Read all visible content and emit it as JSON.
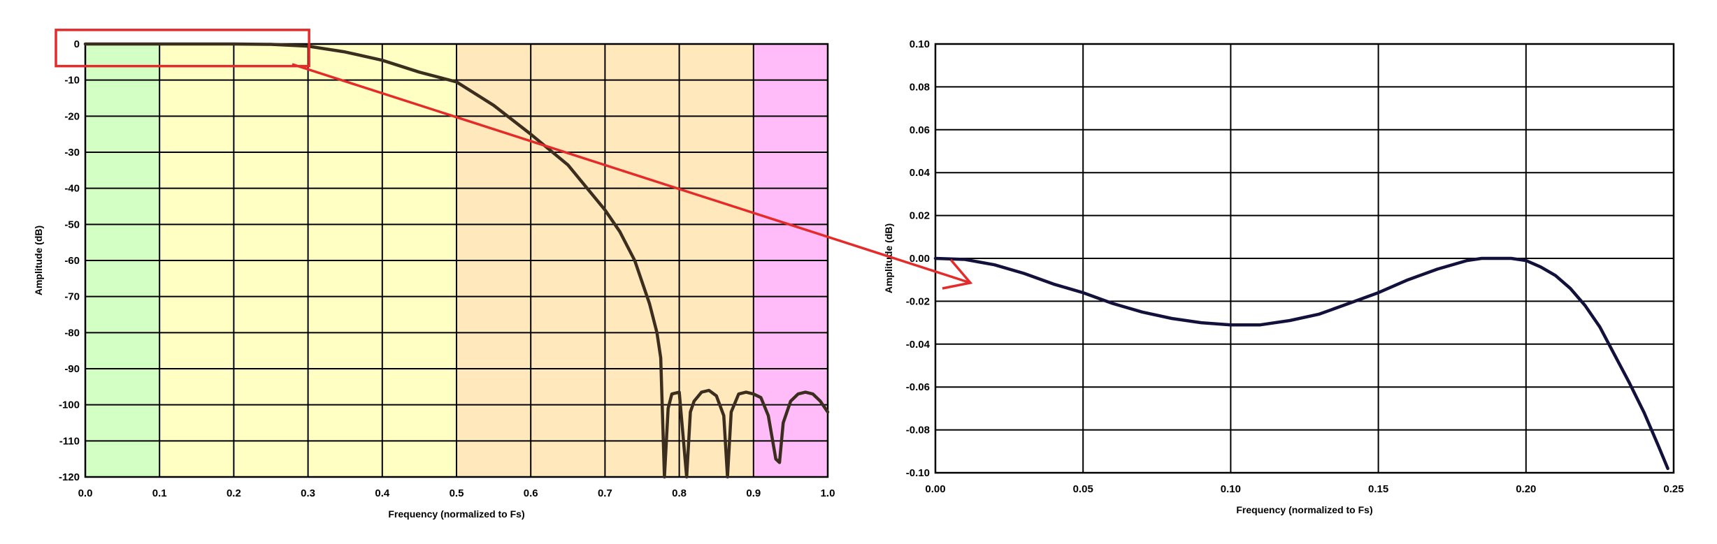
{
  "chart_data": [
    {
      "type": "line",
      "xlabel": "Frequency (normalized to Fs)",
      "ylabel": "Amplitude (dB)",
      "xlim": [
        0,
        1
      ],
      "ylim": [
        -120,
        0
      ],
      "x_ticks": [
        "0.0",
        "0.1",
        "0.2",
        "0.3",
        "0.4",
        "0.5",
        "0.6",
        "0.7",
        "0.8",
        "0.9",
        "1.0"
      ],
      "y_ticks": [
        "0",
        "-10",
        "-20",
        "-30",
        "-40",
        "-50",
        "-60",
        "-70",
        "-80",
        "-90",
        "-100",
        "-110",
        "-120"
      ],
      "grid": true,
      "bands": [
        {
          "x": [
            0.0,
            0.1
          ],
          "color": "#d4ffc4"
        },
        {
          "x": [
            0.1,
            0.5
          ],
          "color": "#ffffc4"
        },
        {
          "x": [
            0.5,
            0.9
          ],
          "color": "#ffe8bc"
        },
        {
          "x": [
            0.9,
            1.0
          ],
          "color": "#ffbcf8"
        }
      ],
      "series": [
        {
          "color": "#3b2e1e",
          "x": [
            0.0,
            0.05,
            0.1,
            0.15,
            0.2,
            0.25,
            0.3,
            0.35,
            0.4,
            0.45,
            0.5,
            0.55,
            0.6,
            0.65,
            0.7,
            0.72,
            0.74,
            0.76,
            0.77,
            0.775,
            0.78,
            0.785,
            0.79,
            0.8,
            0.81,
            0.815,
            0.82,
            0.83,
            0.84,
            0.85,
            0.86,
            0.865,
            0.87,
            0.88,
            0.89,
            0.9,
            0.91,
            0.92,
            0.93,
            0.935,
            0.94,
            0.95,
            0.96,
            0.97,
            0.98,
            0.99,
            1.0
          ],
          "y": [
            0,
            0,
            0,
            0,
            0,
            -0.1,
            -0.6,
            -2.2,
            -4.5,
            -7.8,
            -10.5,
            -17,
            -25,
            -33.5,
            -46,
            -52,
            -60,
            -72,
            -80,
            -87,
            -120,
            -101,
            -97,
            -96.5,
            -120,
            -102,
            -99,
            -96.5,
            -96,
            -97.5,
            -103,
            -120,
            -102,
            -97,
            -96.5,
            -97,
            -98,
            -103,
            -115,
            -116,
            -105,
            -99,
            -97,
            -96.5,
            -97,
            -99,
            -102
          ]
        }
      ]
    },
    {
      "type": "line",
      "xlabel": "Frequency (normalized to Fs)",
      "ylabel": "Amplitude (dB)",
      "xlim": [
        0,
        0.25
      ],
      "ylim": [
        -0.1,
        0.1
      ],
      "x_ticks": [
        "0.00",
        "0.05",
        "0.10",
        "0.15",
        "0.20",
        "0.25"
      ],
      "y_ticks": [
        "0.10",
        "0.08",
        "0.06",
        "0.04",
        "0.02",
        "0.00",
        "-0.02",
        "-0.04",
        "-0.06",
        "-0.08",
        "-0.10"
      ],
      "grid": true,
      "series": [
        {
          "color": "#11113c",
          "x": [
            0.0,
            0.01,
            0.02,
            0.03,
            0.04,
            0.05,
            0.06,
            0.07,
            0.08,
            0.09,
            0.1,
            0.105,
            0.11,
            0.12,
            0.13,
            0.14,
            0.15,
            0.16,
            0.17,
            0.18,
            0.185,
            0.19,
            0.195,
            0.2,
            0.205,
            0.21,
            0.215,
            0.22,
            0.225,
            0.23,
            0.235,
            0.24,
            0.245,
            0.248
          ],
          "y": [
            0.0,
            -0.0005,
            -0.003,
            -0.007,
            -0.012,
            -0.016,
            -0.021,
            -0.025,
            -0.028,
            -0.03,
            -0.031,
            -0.031,
            -0.031,
            -0.029,
            -0.026,
            -0.021,
            -0.016,
            -0.01,
            -0.005,
            -0.001,
            0.0,
            0.0,
            0.0,
            -0.001,
            -0.004,
            -0.008,
            -0.014,
            -0.022,
            -0.032,
            -0.045,
            -0.058,
            -0.072,
            -0.088,
            -0.098
          ]
        }
      ]
    }
  ],
  "annotation": {
    "zoom_box": {
      "x": [
        0,
        0.26
      ],
      "y": [
        1,
        -4
      ]
    },
    "arrow_color": "#e52a2a"
  }
}
